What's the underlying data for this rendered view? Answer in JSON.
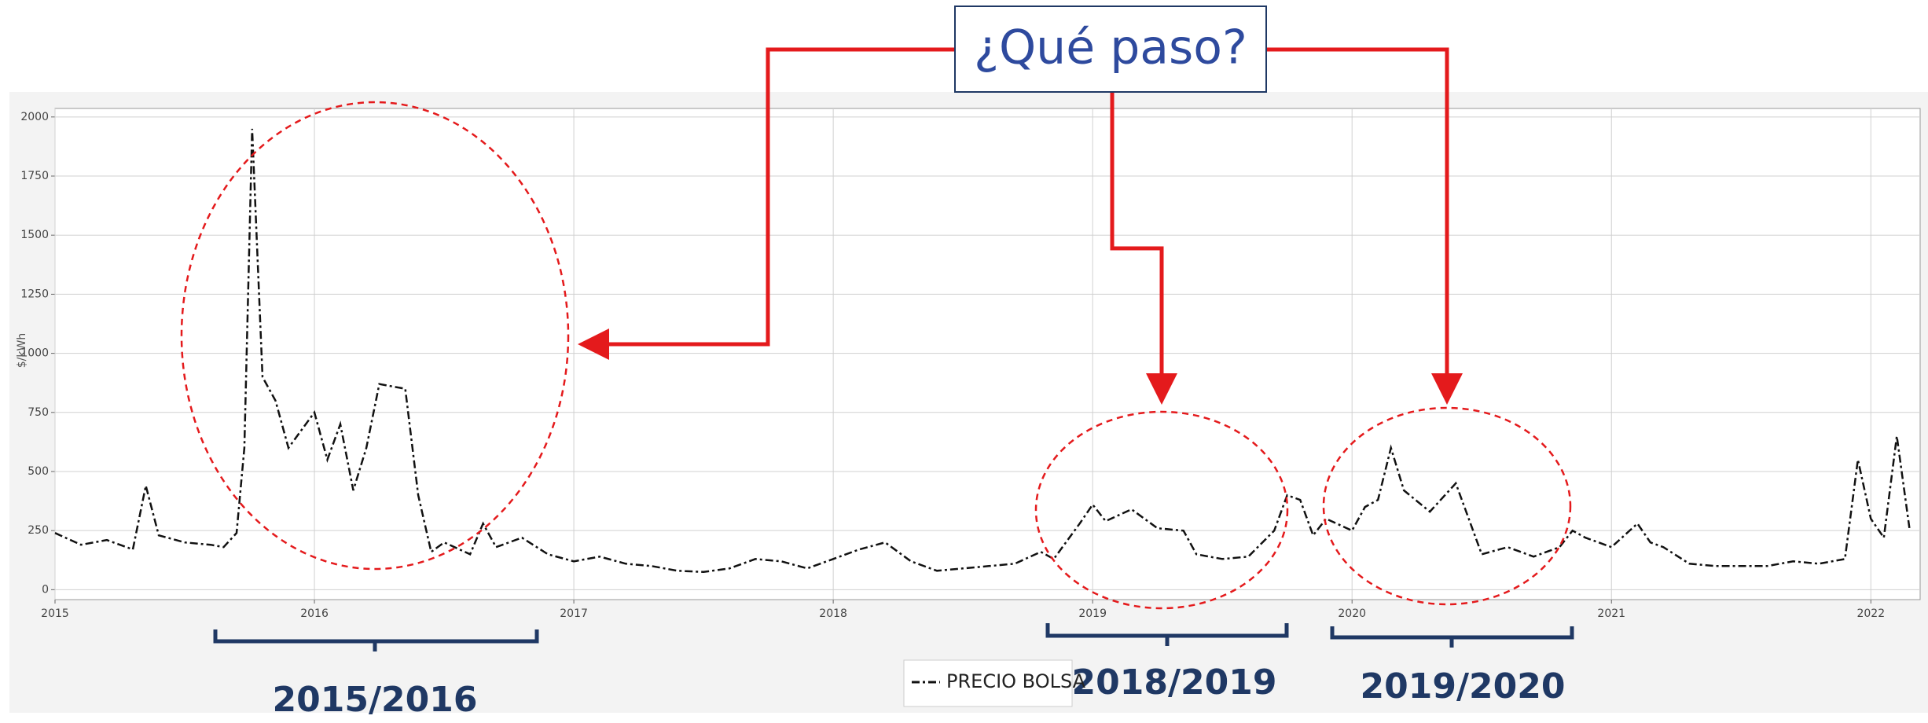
{
  "chart_data": {
    "type": "line",
    "ylabel": "$/kWh",
    "annotations": [
      "¿Qué paso?",
      "2015/2016",
      "2018/2019",
      "2019/2020"
    ],
    "x": [
      2015.0,
      2015.1,
      2015.2,
      2015.3,
      2015.35,
      2015.4,
      2015.5,
      2015.6,
      2015.65,
      2015.7,
      2015.73,
      2015.76,
      2015.8,
      2015.85,
      2015.9,
      2016.0,
      2016.05,
      2016.1,
      2016.15,
      2016.2,
      2016.25,
      2016.35,
      2016.4,
      2016.45,
      2016.5,
      2016.6,
      2016.65,
      2016.7,
      2016.8,
      2016.9,
      2017.0,
      2017.1,
      2017.2,
      2017.3,
      2017.4,
      2017.5,
      2017.6,
      2017.7,
      2017.8,
      2017.9,
      2018.0,
      2018.1,
      2018.2,
      2018.3,
      2018.4,
      2018.5,
      2018.6,
      2018.7,
      2018.8,
      2018.85,
      2018.95,
      2019.0,
      2019.05,
      2019.15,
      2019.25,
      2019.35,
      2019.4,
      2019.5,
      2019.6,
      2019.7,
      2019.75,
      2019.8,
      2019.85,
      2019.9,
      2020.0,
      2020.05,
      2020.1,
      2020.15,
      2020.2,
      2020.3,
      2020.4,
      2020.45,
      2020.5,
      2020.6,
      2020.7,
      2020.8,
      2020.85,
      2020.9,
      2021.0,
      2021.1,
      2021.15,
      2021.2,
      2021.3,
      2021.4,
      2021.5,
      2021.6,
      2021.7,
      2021.8,
      2021.9,
      2021.95,
      2022.0,
      2022.05,
      2022.1,
      2022.15
    ],
    "series": [
      {
        "name": "PRECIO BOLSA",
        "color": "#111111",
        "values": [
          240,
          190,
          210,
          170,
          440,
          230,
          200,
          190,
          180,
          240,
          600,
          1950,
          900,
          800,
          600,
          750,
          550,
          700,
          420,
          600,
          870,
          850,
          400,
          160,
          200,
          150,
          280,
          180,
          220,
          150,
          120,
          140,
          110,
          100,
          80,
          75,
          90,
          130,
          120,
          90,
          130,
          170,
          200,
          120,
          80,
          90,
          100,
          110,
          160,
          130,
          280,
          360,
          290,
          340,
          260,
          250,
          150,
          130,
          140,
          250,
          400,
          380,
          230,
          300,
          250,
          350,
          380,
          600,
          420,
          330,
          450,
          300,
          150,
          180,
          140,
          180,
          250,
          220,
          180,
          280,
          200,
          180,
          110,
          100,
          100,
          100,
          120,
          110,
          130,
          550,
          300,
          220,
          650,
          250
        ]
      }
    ],
    "xlim": [
      2015,
      2022.19
    ],
    "xticks": [
      2015,
      2016,
      2017,
      2018,
      2019,
      2020,
      2021,
      2022
    ],
    "ylim": [
      -42,
      2036
    ],
    "yticks": [
      0,
      250,
      500,
      750,
      1000,
      1250,
      1500,
      1750,
      2000
    ],
    "grid": true,
    "legend": "lower center"
  }
}
